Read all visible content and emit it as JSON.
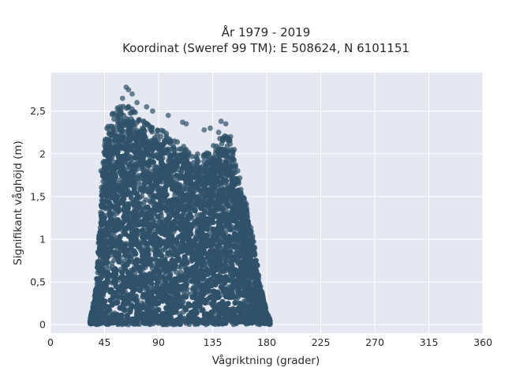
{
  "chart_data": {
    "type": "scatter",
    "title": "År 1979 - 2019",
    "subtitle": "Koordinat (Sweref 99 TM): E 508624, N 6101151",
    "xlabel": "Vågriktning (grader)",
    "ylabel": "Signifikant våghöjd (m)",
    "xlim": [
      0,
      360
    ],
    "ylim": [
      -0.1,
      2.95
    ],
    "x_ticks": [
      0,
      45,
      90,
      135,
      180,
      225,
      270,
      315,
      360
    ],
    "x_tick_labels": [
      "0",
      "45",
      "90",
      "135",
      "180",
      "225",
      "270",
      "315",
      "360"
    ],
    "y_ticks": [
      0,
      0.5,
      1,
      1.5,
      2,
      2.5
    ],
    "y_tick_labels": [
      "0",
      "0,5",
      "1",
      "1,5",
      "2",
      "2,5"
    ],
    "grid": true,
    "legend": "none",
    "marker_color": "#2f5169",
    "background_color": "#e5e8f0",
    "envelope": {
      "description": "upper boundary of dense point cloud (direction, max height)",
      "x": [
        33,
        38,
        42,
        45,
        50,
        55,
        60,
        65,
        70,
        75,
        80,
        85,
        90,
        95,
        100,
        105,
        110,
        115,
        120,
        125,
        130,
        135,
        140,
        145,
        150,
        155,
        160,
        165,
        170,
        175,
        180,
        183
      ],
      "y": [
        0.05,
        0.45,
        1.5,
        2.2,
        2.45,
        2.55,
        2.6,
        2.58,
        2.5,
        2.45,
        2.4,
        2.35,
        2.32,
        2.28,
        2.22,
        2.15,
        2.1,
        2.05,
        2.0,
        2.0,
        2.05,
        2.1,
        2.2,
        2.25,
        2.15,
        1.9,
        1.6,
        1.3,
        0.9,
        0.45,
        0.15,
        0.05
      ]
    },
    "outliers": {
      "x": [
        63,
        65,
        68,
        72,
        58,
        55,
        80,
        85,
        98,
        110,
        113,
        128,
        133,
        142,
        146,
        140,
        150,
        153,
        45,
        42,
        60
      ],
      "y": [
        2.78,
        2.75,
        2.7,
        2.6,
        2.55,
        2.45,
        2.55,
        2.5,
        2.45,
        2.37,
        2.35,
        2.28,
        2.3,
        2.38,
        2.35,
        2.25,
        2.2,
        2.05,
        2.1,
        1.8,
        2.65
      ]
    }
  }
}
